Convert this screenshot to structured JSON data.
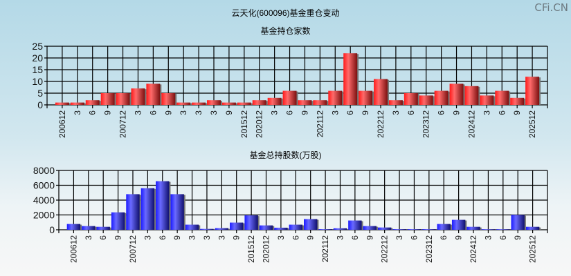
{
  "page": {
    "title": "云天化(600096)基金重仓变动",
    "watermark": "CFi.CN"
  },
  "colors": {
    "bar_top": "#e0202a",
    "bar_bottom": "#2828e0",
    "grid": "#000000"
  },
  "chart_data": [
    {
      "type": "bar",
      "title": "基金持仓家数",
      "categories": [
        "200612",
        "3",
        "6",
        "9",
        "200712",
        "3",
        "6",
        "9",
        "3",
        "3",
        "3",
        "9",
        "201512",
        "202012",
        "3",
        "6",
        "9",
        "202112",
        "3",
        "6",
        "9",
        "202212",
        "3",
        "6",
        "202312",
        "6",
        "9",
        "202412",
        "3",
        "6",
        "9",
        "202512"
      ],
      "values": [
        1,
        1,
        2,
        5,
        5,
        7,
        9,
        5,
        1,
        1,
        2,
        1,
        1,
        2,
        3,
        6,
        2,
        2,
        6,
        22,
        6,
        11,
        2,
        5,
        4,
        6,
        9,
        8,
        4,
        6,
        3,
        12
      ],
      "yticks": [
        "0",
        "5",
        "10",
        "15",
        "20",
        "25"
      ],
      "ylim": [
        0,
        25
      ],
      "grid": true
    },
    {
      "type": "bar",
      "title": "基金总持股数(万股)",
      "categories": [
        "200612",
        "3",
        "6",
        "9",
        "200712",
        "3",
        "6",
        "9",
        "3",
        "3",
        "3",
        "9",
        "201512",
        "202012",
        "3",
        "6",
        "9",
        "202112",
        "3",
        "6",
        "9",
        "202212",
        "3",
        "6",
        "202312",
        "6",
        "9",
        "202412",
        "3",
        "6",
        "9",
        "202512"
      ],
      "values": [
        780,
        500,
        400,
        2350,
        4800,
        5600,
        6550,
        4800,
        690,
        120,
        220,
        970,
        1940,
        590,
        280,
        690,
        1440,
        90,
        200,
        1250,
        500,
        310,
        90,
        90,
        90,
        780,
        1340,
        400,
        80,
        80,
        2000,
        400
      ],
      "yticks": [
        "0",
        "2000",
        "4000",
        "6000",
        "8000"
      ],
      "ylim": [
        0,
        8000
      ],
      "grid": true
    }
  ]
}
